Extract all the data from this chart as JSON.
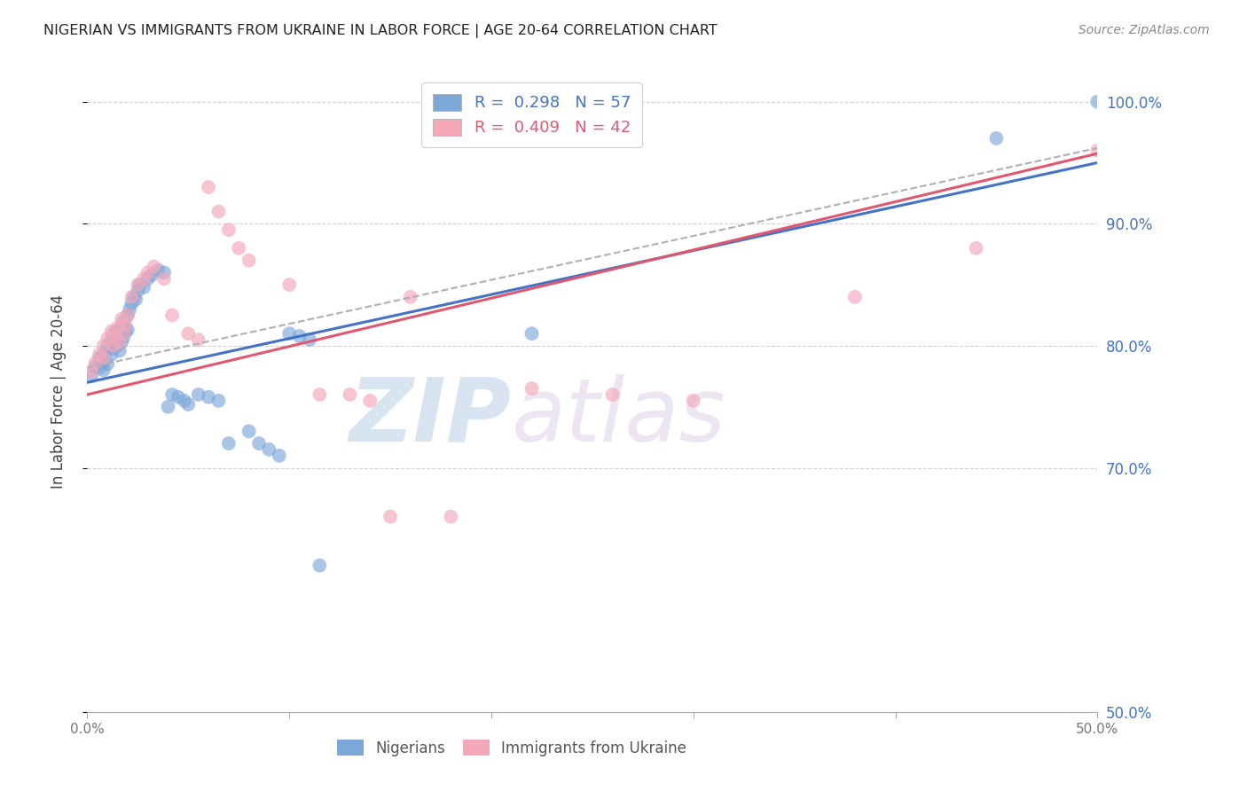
{
  "title": "NIGERIAN VS IMMIGRANTS FROM UKRAINE IN LABOR FORCE | AGE 20-64 CORRELATION CHART",
  "source": "Source: ZipAtlas.com",
  "ylabel": "In Labor Force | Age 20-64",
  "right_ytick_labels": [
    "100.0%",
    "90.0%",
    "80.0%",
    "70.0%",
    "50.0%"
  ],
  "right_ytick_values": [
    1.0,
    0.9,
    0.8,
    0.7,
    0.5
  ],
  "xlim": [
    0.0,
    0.5
  ],
  "ylim": [
    0.5,
    1.025
  ],
  "bottom_legend": [
    "Nigerians",
    "Immigrants from Ukraine"
  ],
  "blue_color": "#7da7d9",
  "pink_color": "#f4a7b9",
  "blue_line_color": "#4472c4",
  "pink_line_color": "#e05870",
  "watermark_zip": "ZIP",
  "watermark_atlas": "atlas",
  "grid_color": "#cccccc",
  "right_label_color": "#4472c4",
  "blue_x": [
    0.002,
    0.004,
    0.006,
    0.006,
    0.008,
    0.008,
    0.008,
    0.009,
    0.01,
    0.01,
    0.012,
    0.012,
    0.013,
    0.013,
    0.014,
    0.015,
    0.015,
    0.016,
    0.016,
    0.017,
    0.017,
    0.018,
    0.018,
    0.019,
    0.02,
    0.02,
    0.021,
    0.022,
    0.023,
    0.024,
    0.025,
    0.026,
    0.028,
    0.03,
    0.032,
    0.035,
    0.038,
    0.04,
    0.042,
    0.045,
    0.048,
    0.05,
    0.055,
    0.06,
    0.065,
    0.07,
    0.08,
    0.085,
    0.09,
    0.095,
    0.1,
    0.105,
    0.11,
    0.115,
    0.22,
    0.45,
    0.5
  ],
  "blue_y": [
    0.775,
    0.783,
    0.79,
    0.782,
    0.793,
    0.786,
    0.78,
    0.795,
    0.8,
    0.785,
    0.805,
    0.793,
    0.81,
    0.798,
    0.803,
    0.812,
    0.8,
    0.808,
    0.796,
    0.815,
    0.803,
    0.82,
    0.807,
    0.812,
    0.825,
    0.813,
    0.83,
    0.835,
    0.84,
    0.838,
    0.845,
    0.85,
    0.848,
    0.855,
    0.858,
    0.862,
    0.86,
    0.75,
    0.76,
    0.758,
    0.755,
    0.752,
    0.76,
    0.758,
    0.755,
    0.72,
    0.73,
    0.72,
    0.715,
    0.71,
    0.81,
    0.808,
    0.805,
    0.62,
    0.81,
    0.97,
    1.0
  ],
  "pink_x": [
    0.002,
    0.004,
    0.006,
    0.008,
    0.008,
    0.01,
    0.012,
    0.013,
    0.014,
    0.015,
    0.016,
    0.017,
    0.018,
    0.019,
    0.02,
    0.022,
    0.025,
    0.028,
    0.03,
    0.033,
    0.038,
    0.042,
    0.05,
    0.055,
    0.06,
    0.065,
    0.07,
    0.075,
    0.08,
    0.1,
    0.115,
    0.13,
    0.16,
    0.22,
    0.26,
    0.3,
    0.38,
    0.44,
    0.5,
    0.14,
    0.15,
    0.18
  ],
  "pink_y": [
    0.779,
    0.786,
    0.793,
    0.8,
    0.79,
    0.806,
    0.812,
    0.8,
    0.808,
    0.815,
    0.803,
    0.822,
    0.81,
    0.817,
    0.825,
    0.84,
    0.85,
    0.855,
    0.86,
    0.865,
    0.855,
    0.825,
    0.81,
    0.805,
    0.93,
    0.91,
    0.895,
    0.88,
    0.87,
    0.85,
    0.76,
    0.76,
    0.84,
    0.765,
    0.76,
    0.755,
    0.84,
    0.88,
    0.96,
    0.755,
    0.66,
    0.66
  ]
}
